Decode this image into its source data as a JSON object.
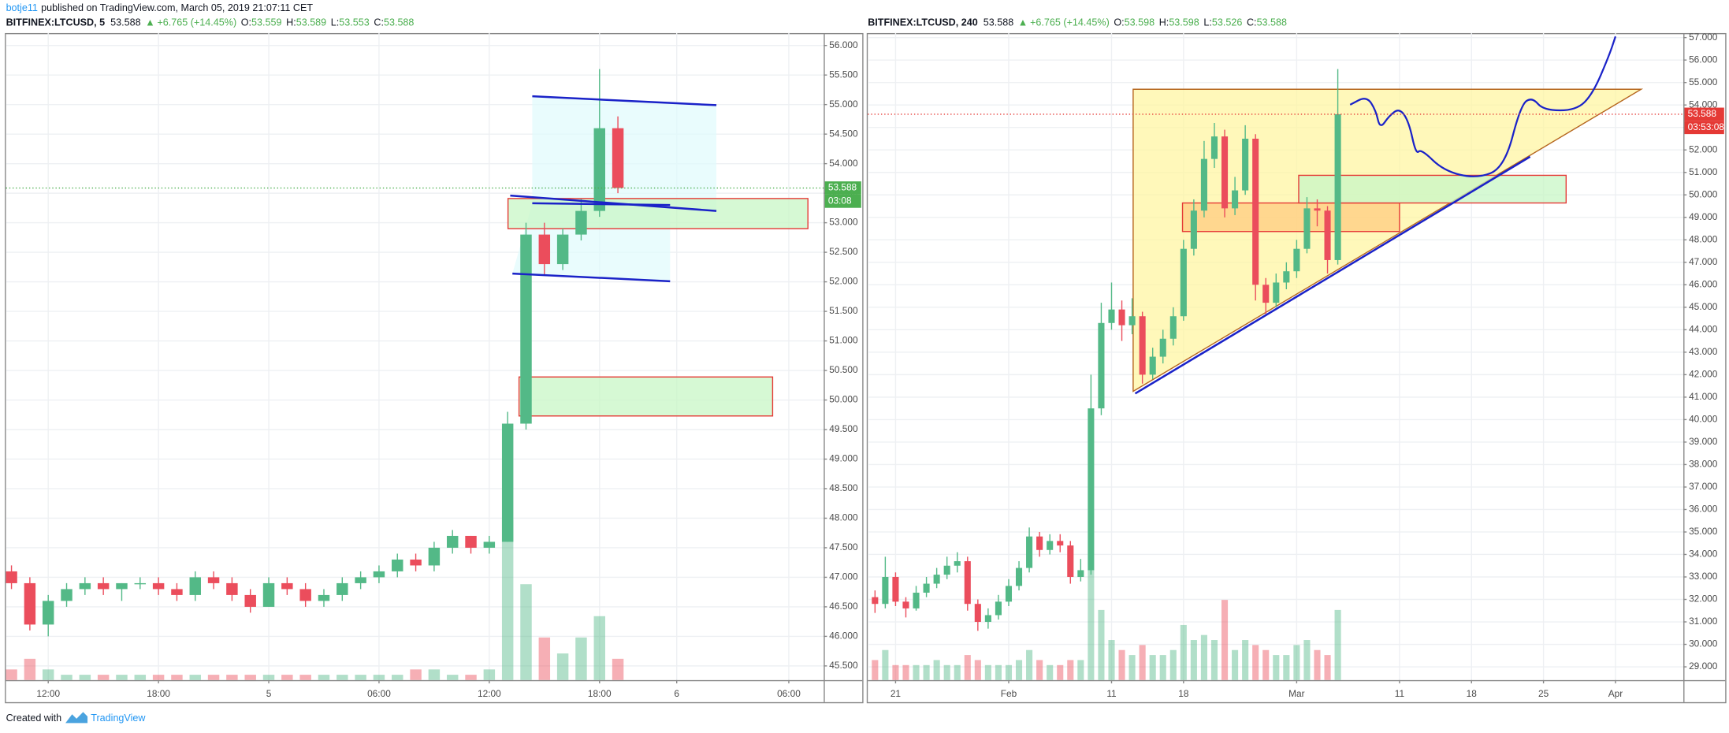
{
  "header": {
    "author": "botje11",
    "text": "published on TradingView.com, March 05, 2019 21:07:11 CET"
  },
  "footer": {
    "text": "Created with",
    "brand": "TradingView"
  },
  "chart_data": [
    {
      "type": "candlestick",
      "title": "BITFINEX:LTCUSD, 5",
      "last_price": 53.588,
      "change_arrow": "▲",
      "change": "+6.765 (+14.45%)",
      "ohlc_labels": [
        "O:",
        "H:",
        "L:",
        "C:"
      ],
      "ohlc": [
        53.559,
        53.589,
        53.553,
        53.588
      ],
      "countdown": "03:08",
      "last_color": "#4caf50",
      "up_color": "#53b987",
      "down_color": "#eb4d5c",
      "x": [
        -2,
        -1,
        0,
        1,
        2,
        3,
        4,
        5,
        6,
        7,
        8,
        9,
        10,
        11,
        12,
        13,
        14,
        15,
        16,
        17,
        18,
        19,
        20,
        21,
        22,
        23,
        24,
        25,
        26,
        27,
        28,
        29,
        30,
        31
      ],
      "open": [
        47.1,
        46.9,
        46.2,
        46.6,
        46.8,
        46.9,
        46.8,
        46.9,
        46.9,
        46.8,
        46.7,
        47.0,
        46.9,
        46.7,
        46.5,
        46.9,
        46.8,
        46.6,
        46.7,
        46.9,
        47.0,
        47.1,
        47.3,
        47.2,
        47.5,
        47.7,
        47.5,
        47.6,
        49.6,
        52.8,
        52.3,
        52.8,
        53.2,
        54.6
      ],
      "high": [
        47.2,
        47.0,
        46.7,
        46.9,
        47.0,
        47.0,
        46.9,
        47.0,
        47.0,
        46.9,
        47.1,
        47.1,
        47.0,
        46.8,
        47.0,
        47.0,
        46.9,
        46.8,
        47.0,
        47.1,
        47.2,
        47.4,
        47.4,
        47.6,
        47.8,
        47.7,
        47.7,
        49.8,
        53.0,
        53.0,
        52.9,
        53.4,
        55.6,
        54.8
      ],
      "low": [
        46.8,
        46.1,
        46.0,
        46.5,
        46.7,
        46.7,
        46.6,
        46.8,
        46.7,
        46.6,
        46.6,
        46.8,
        46.6,
        46.4,
        46.5,
        46.7,
        46.5,
        46.5,
        46.6,
        46.8,
        46.9,
        47.0,
        47.1,
        47.1,
        47.4,
        47.4,
        47.4,
        47.6,
        49.5,
        52.1,
        52.2,
        52.7,
        53.1,
        53.5
      ],
      "close": [
        46.9,
        46.2,
        46.6,
        46.8,
        46.9,
        46.8,
        46.9,
        46.9,
        46.8,
        46.7,
        47.0,
        46.9,
        46.7,
        46.5,
        46.9,
        46.8,
        46.6,
        46.7,
        46.9,
        47.0,
        47.1,
        47.3,
        47.2,
        47.5,
        47.7,
        47.5,
        47.6,
        49.6,
        52.8,
        52.3,
        52.8,
        53.2,
        54.6,
        53.588
      ],
      "volume": [
        2,
        4,
        2,
        1,
        1,
        1,
        1,
        1,
        1,
        1,
        1,
        1,
        1,
        1,
        1,
        1,
        1,
        1,
        1,
        1,
        1,
        1,
        2,
        2,
        1,
        1,
        2,
        30,
        18,
        8,
        5,
        8,
        12,
        4
      ],
      "xlim": [
        -2.3,
        42.2
      ],
      "xticks": [
        {
          "value": 0,
          "label": "12:00"
        },
        {
          "value": 6,
          "label": "18:00"
        },
        {
          "value": 12,
          "label": "5"
        },
        {
          "value": 18,
          "label": "06:00"
        },
        {
          "value": 24,
          "label": "12:00"
        },
        {
          "value": 30,
          "label": "18:00"
        },
        {
          "value": 34.2,
          "label": "6"
        },
        {
          "value": 40.3,
          "label": "06:00"
        }
      ],
      "ylim": [
        45.26,
        56.21
      ],
      "yticks": [
        {
          "value": 45.5,
          "label": "45.500"
        },
        {
          "value": 46,
          "label": "46.000"
        },
        {
          "value": 46.5,
          "label": "46.500"
        },
        {
          "value": 47,
          "label": "47.000"
        },
        {
          "value": 47.5,
          "label": "47.500"
        },
        {
          "value": 48,
          "label": "48.000"
        },
        {
          "value": 48.5,
          "label": "48.500"
        },
        {
          "value": 49,
          "label": "49.000"
        },
        {
          "value": 49.5,
          "label": "49.500"
        },
        {
          "value": 50,
          "label": "50.000"
        },
        {
          "value": 50.5,
          "label": "50.500"
        },
        {
          "value": 51,
          "label": "51.000"
        },
        {
          "value": 51.5,
          "label": "51.500"
        },
        {
          "value": 52,
          "label": "52.000"
        },
        {
          "value": 52.5,
          "label": "52.500"
        },
        {
          "value": 53,
          "label": "53.000"
        },
        {
          "value": 53.5,
          "label": "53.500"
        },
        {
          "value": 54,
          "label": "54.000"
        },
        {
          "value": 54.5,
          "label": "54.500"
        },
        {
          "value": 55,
          "label": "55.000"
        },
        {
          "value": 55.5,
          "label": "55.500"
        },
        {
          "value": 56,
          "label": "56.000"
        }
      ],
      "grid": true,
      "drawings": [
        {
          "kind": "polygon",
          "x": [
            26.34,
            36.36,
            36.36,
            33.84,
            33.84,
            25.26,
            26.34
          ],
          "y": [
            55.14,
            54.99,
            53.2,
            53.3,
            52.01,
            52.14,
            53.33
          ],
          "fill": "#e0fbfc",
          "stroke": "none"
        },
        {
          "kind": "rect",
          "x": [
            25.02,
            41.34
          ],
          "y": [
            52.9,
            53.41
          ],
          "fill": "#c8f7c5",
          "stroke": "#e53935"
        },
        {
          "kind": "rect",
          "x": [
            25.62,
            39.42
          ],
          "y": [
            49.73,
            50.39
          ],
          "fill": "#c8f7c5",
          "stroke": "#e53935"
        },
        {
          "kind": "line",
          "x": [
            26.34,
            36.36
          ],
          "y": [
            55.14,
            54.99
          ],
          "fill": "none",
          "stroke": "#1a22c8"
        },
        {
          "kind": "line",
          "x": [
            25.14,
            36.36
          ],
          "y": [
            53.46,
            53.2
          ],
          "fill": "none",
          "stroke": "#1a22c8"
        },
        {
          "kind": "line",
          "x": [
            26.34,
            33.84
          ],
          "y": [
            53.33,
            53.3
          ],
          "fill": "none",
          "stroke": "#1a22c8"
        },
        {
          "kind": "line",
          "x": [
            25.26,
            33.84
          ],
          "y": [
            52.14,
            52.01
          ],
          "fill": "none",
          "stroke": "#1a22c8"
        }
      ]
    },
    {
      "type": "candlestick",
      "title": "BITFINEX:LTCUSD, 240",
      "last_price": 53.588,
      "change_arrow": "▲",
      "change": "+6.765 (+14.45%)",
      "ohlc_labels": [
        "O:",
        "H:",
        "L:",
        "C:"
      ],
      "ohlc": [
        53.598,
        53.598,
        53.526,
        53.588
      ],
      "countdown": "03:53:08",
      "last_color": "#e53935",
      "up_color": "#53b987",
      "down_color": "#eb4d5c",
      "x": [
        19,
        20,
        21,
        22,
        23,
        24,
        25,
        26,
        27,
        28,
        29,
        30,
        31,
        32,
        33,
        34,
        35,
        36,
        37,
        38,
        39,
        40,
        41,
        42,
        43,
        44,
        45,
        46,
        47,
        48,
        49,
        50,
        51,
        52,
        53,
        54,
        55,
        56,
        57,
        58,
        59,
        60,
        61,
        62,
        63,
        64
      ],
      "open": [
        32.1,
        31.8,
        33.0,
        31.9,
        31.6,
        32.3,
        32.7,
        33.1,
        33.5,
        33.7,
        31.8,
        31.0,
        31.3,
        31.9,
        32.6,
        33.4,
        34.8,
        34.2,
        34.6,
        34.4,
        33.0,
        33.3,
        40.5,
        44.3,
        44.9,
        44.2,
        44.6,
        42.0,
        42.8,
        43.6,
        44.6,
        47.6,
        49.3,
        51.6,
        52.6,
        49.4,
        50.2,
        52.5,
        46.0,
        45.2,
        46.1,
        46.6,
        47.6,
        49.4,
        49.3,
        47.1
      ],
      "high": [
        32.4,
        33.9,
        33.2,
        32.1,
        32.6,
        33.0,
        33.4,
        33.9,
        34.1,
        33.9,
        32.0,
        31.6,
        32.2,
        32.9,
        33.7,
        35.2,
        35.0,
        34.9,
        34.9,
        34.6,
        33.8,
        42.0,
        45.2,
        46.1,
        45.3,
        45.4,
        44.8,
        43.2,
        44.0,
        45.0,
        48.0,
        49.8,
        52.4,
        53.2,
        52.9,
        50.8,
        53.1,
        52.7,
        46.3,
        46.5,
        47.0,
        48.0,
        49.9,
        49.8,
        49.5,
        55.6
      ],
      "low": [
        31.4,
        31.6,
        31.7,
        31.2,
        31.5,
        32.1,
        32.5,
        32.9,
        33.2,
        31.5,
        30.6,
        30.7,
        31.1,
        31.7,
        32.4,
        33.2,
        33.9,
        34.0,
        34.1,
        32.7,
        32.8,
        33.1,
        40.2,
        44.0,
        43.5,
        43.8,
        41.6,
        41.8,
        42.5,
        43.3,
        44.4,
        47.3,
        49.0,
        51.2,
        49.0,
        49.1,
        50.0,
        45.3,
        44.7,
        45.0,
        45.8,
        46.3,
        47.4,
        48.6,
        46.5,
        46.9
      ],
      "close": [
        31.8,
        33.0,
        31.9,
        31.6,
        32.3,
        32.7,
        33.1,
        33.5,
        33.7,
        31.8,
        31.0,
        31.3,
        31.9,
        32.6,
        33.4,
        34.8,
        34.2,
        34.6,
        34.4,
        33.0,
        33.3,
        40.5,
        44.3,
        44.9,
        44.2,
        44.6,
        42.0,
        42.8,
        43.6,
        44.6,
        47.6,
        49.3,
        51.6,
        52.6,
        49.4,
        50.2,
        52.5,
        46.0,
        45.2,
        46.1,
        46.6,
        47.6,
        49.4,
        49.3,
        47.1,
        53.588
      ],
      "volume": [
        4,
        6,
        3,
        3,
        3,
        3,
        4,
        3,
        3,
        5,
        4,
        3,
        3,
        3,
        4,
        6,
        4,
        3,
        3,
        4,
        4,
        22,
        14,
        8,
        6,
        5,
        7,
        5,
        5,
        6,
        11,
        8,
        9,
        8,
        16,
        6,
        8,
        7,
        6,
        5,
        5,
        7,
        8,
        6,
        5,
        14
      ],
      "xlim": [
        18.3,
        97.6
      ],
      "xticks": [
        21,
        {
          "value": 32,
          "label": "Feb"
        },
        {
          "value": 42,
          "label": "11"
        },
        {
          "value": 49,
          "label": "18"
        },
        {
          "value": 60,
          "label": "Mar"
        },
        {
          "value": 70,
          "label": "11"
        },
        {
          "value": 77,
          "label": "18"
        },
        {
          "value": 84,
          "label": "25"
        },
        {
          "value": 91,
          "label": "Apr"
        }
      ],
      "ylim": [
        28.41,
        57.2
      ],
      "yticks": [
        {
          "value": 29,
          "label": "29.000"
        },
        {
          "value": 30,
          "label": "30.000"
        },
        {
          "value": 31,
          "label": "31.000"
        },
        {
          "value": 32,
          "label": "32.000"
        },
        {
          "value": 33,
          "label": "33.000"
        },
        {
          "value": 34,
          "label": "34.000"
        },
        {
          "value": 35,
          "label": "35.000"
        },
        {
          "value": 36,
          "label": "36.000"
        },
        {
          "value": 37,
          "label": "37.000"
        },
        {
          "value": 38,
          "label": "38.000"
        },
        {
          "value": 39,
          "label": "39.000"
        },
        {
          "value": 40,
          "label": "40.000"
        },
        {
          "value": 41,
          "label": "41.000"
        },
        {
          "value": 42,
          "label": "42.000"
        },
        {
          "value": 43,
          "label": "43.000"
        },
        {
          "value": 44,
          "label": "44.000"
        },
        {
          "value": 45,
          "label": "45.000"
        },
        {
          "value": 46,
          "label": "46.000"
        },
        {
          "value": 47,
          "label": "47.000"
        },
        {
          "value": 48,
          "label": "48.000"
        },
        {
          "value": 49,
          "label": "49.000"
        },
        {
          "value": 50,
          "label": "50.000"
        },
        {
          "value": 51,
          "label": "51.000"
        },
        {
          "value": 52,
          "label": "52.000"
        },
        {
          "value": 53,
          "label": "53.000"
        },
        {
          "value": 54,
          "label": "54.000"
        },
        {
          "value": 55,
          "label": "55.000"
        },
        {
          "value": 56,
          "label": "56.000"
        },
        {
          "value": 57,
          "label": "57.000"
        }
      ],
      "grid": true,
      "drawings": [
        {
          "kind": "polygon",
          "x": [
            44.1,
            93.5,
            44.1
          ],
          "y": [
            54.7,
            54.7,
            41.26
          ],
          "fill": "#fff59d",
          "stroke": "#b5651d"
        },
        {
          "kind": "rect",
          "x": [
            48.9,
            70.0
          ],
          "y": [
            48.37,
            49.64
          ],
          "fill": "#ffcc80",
          "stroke": "#e53935"
        },
        {
          "kind": "rect",
          "x": [
            60.2,
            86.2
          ],
          "y": [
            49.64,
            50.87
          ],
          "fill": "#c8f7c5",
          "stroke": "#e53935"
        },
        {
          "kind": "line",
          "x": [
            44.3,
            82.7
          ],
          "y": [
            41.16,
            51.7
          ],
          "fill": "none",
          "stroke": "#1a22c8"
        },
        {
          "kind": "curve",
          "x": [
            65.2,
            66.8,
            67.7,
            68.1,
            69.0,
            70.0,
            70.9,
            71.6,
            72.1,
            74.3,
            77.5,
            80.2,
            81.8,
            82.9,
            84.0,
            87.2,
            88.8,
            90.4,
            91.0
          ],
          "y": [
            54.01,
            54.4,
            53.76,
            52.93,
            53.52,
            53.86,
            53.27,
            51.8,
            52.05,
            51.07,
            50.72,
            51.21,
            54.01,
            54.35,
            53.76,
            53.76,
            54.5,
            56.22,
            57.05
          ],
          "fill": "none",
          "stroke": "#1a22c8"
        }
      ]
    }
  ]
}
